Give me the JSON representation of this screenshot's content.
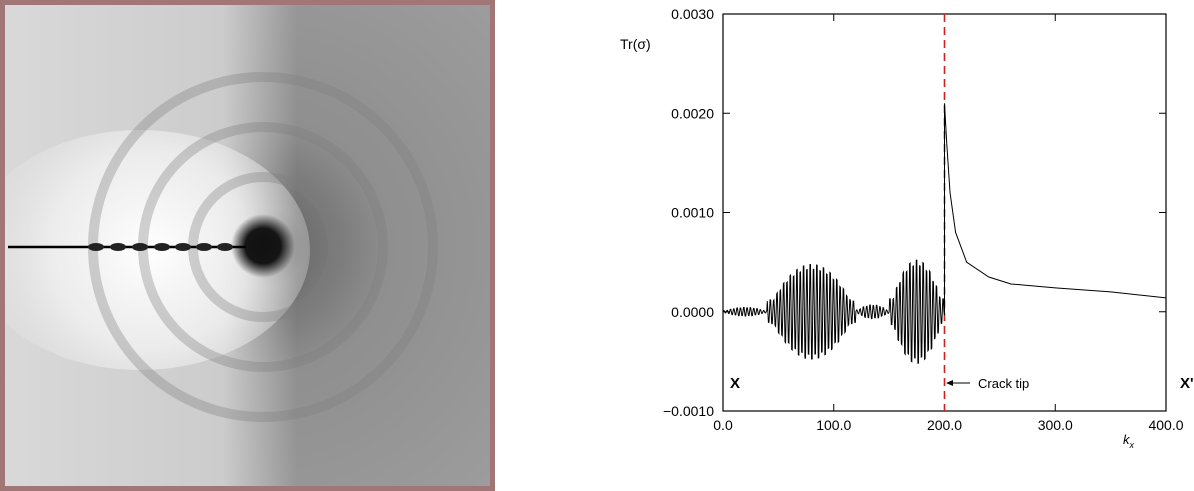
{
  "figure": {
    "left_panel": {
      "type": "stress-field-image",
      "frame_color": "#a07676",
      "crack_line_color": "#000000"
    }
  },
  "chart_data": {
    "type": "line",
    "ylabel": "Tr(σ)",
    "xlabel": "k_x",
    "xlim": [
      0,
      400
    ],
    "ylim": [
      -0.001,
      0.003
    ],
    "x_ticks": [
      "0.0",
      "100.0",
      "200.0",
      "300.0",
      "400.0"
    ],
    "y_ticks": [
      "−0.0010",
      "0.0000",
      "0.0010",
      "0.0020",
      "0.0030"
    ],
    "annotations": {
      "left_marker": "X",
      "right_marker": "X'",
      "crack_tip_label": "Crack tip",
      "crack_tip_x": 200
    },
    "crack_line_color": "#cc2222",
    "series": [
      {
        "color": "#000000",
        "segments": [
          {
            "kind": "oscillation",
            "x": [
              0,
              200
            ],
            "envelope_bursts": [
              [
                0,
                40,
                5e-05
              ],
              [
                40,
                120,
                0.00055
              ],
              [
                120,
                150,
                8e-05
              ],
              [
                150,
                200,
                0.0006
              ]
            ]
          },
          {
            "kind": "decay",
            "points": [
              [
                200,
                0.0021
              ],
              [
                202,
                0.0017
              ],
              [
                205,
                0.0012
              ],
              [
                210,
                0.0008
              ],
              [
                220,
                0.0005
              ],
              [
                240,
                0.00035
              ],
              [
                260,
                0.00028
              ],
              [
                300,
                0.00024
              ],
              [
                350,
                0.0002
              ],
              [
                400,
                0.00014
              ]
            ]
          }
        ]
      }
    ]
  }
}
